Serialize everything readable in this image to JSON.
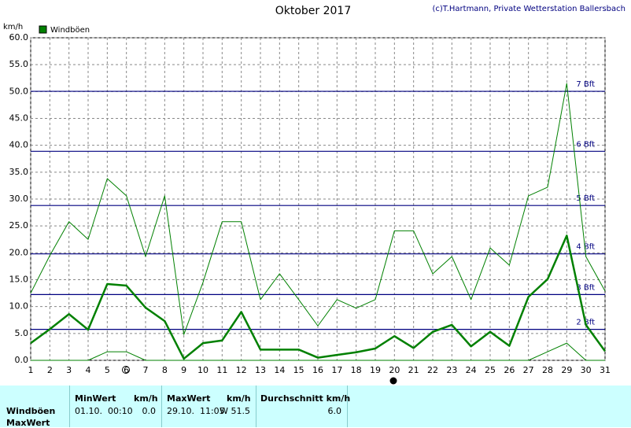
{
  "chart_data": {
    "type": "line",
    "title": "Oktober 2017",
    "credit": "(c)T.Hartmann, Private Wetterstation Ballersbach",
    "ylabel": "km/h",
    "x": [
      1,
      2,
      3,
      4,
      5,
      6,
      7,
      8,
      9,
      10,
      11,
      12,
      13,
      14,
      15,
      16,
      17,
      18,
      19,
      20,
      21,
      22,
      23,
      24,
      25,
      26,
      27,
      28,
      29,
      30,
      31
    ],
    "xlim": [
      1,
      31
    ],
    "xticks": [
      1,
      2,
      3,
      4,
      5,
      6,
      7,
      8,
      9,
      10,
      11,
      12,
      13,
      14,
      15,
      16,
      17,
      18,
      19,
      20,
      21,
      22,
      23,
      24,
      25,
      26,
      27,
      28,
      29,
      30,
      31
    ],
    "ylim": [
      0,
      60
    ],
    "yticks": [
      {
        "value": 0,
        "label": "0.0"
      },
      {
        "value": 5,
        "label": "5.0"
      },
      {
        "value": 10,
        "label": "10.0"
      },
      {
        "value": 15,
        "label": "15.0"
      },
      {
        "value": 20,
        "label": "20.0"
      },
      {
        "value": 25,
        "label": "25.0"
      },
      {
        "value": 30,
        "label": "30.0"
      },
      {
        "value": 35,
        "label": "35.0"
      },
      {
        "value": 40,
        "label": "40.0"
      },
      {
        "value": 45,
        "label": "45.0"
      },
      {
        "value": 50,
        "label": "50.0"
      },
      {
        "value": 55,
        "label": "55.0"
      },
      {
        "value": 60,
        "label": "60.0"
      }
    ],
    "grid": true,
    "reference_lines": [
      {
        "value": 5.76,
        "label": "2 Bft"
      },
      {
        "value": 12.24,
        "label": "3 Bft"
      },
      {
        "value": 19.8,
        "label": "4 Bft"
      },
      {
        "value": 28.8,
        "label": "5 Bft"
      },
      {
        "value": 38.88,
        "label": "6 Bft"
      },
      {
        "value": 50.04,
        "label": "7 Bft"
      }
    ],
    "reference_color": "#000080",
    "series": [
      {
        "name": "Windböen",
        "color": "#008000",
        "width": 1,
        "values": [
          12.5,
          19.5,
          25.8,
          22.5,
          33.8,
          30.6,
          19.3,
          30.6,
          4.8,
          14.5,
          25.8,
          25.8,
          11.3,
          16.1,
          11.3,
          6.4,
          11.3,
          9.7,
          11.3,
          24.1,
          24.1,
          16.1,
          19.3,
          11.3,
          20.9,
          17.7,
          30.6,
          32.2,
          51.5,
          19.3,
          12.9
        ]
      },
      {
        "color": "#008000",
        "width": 2.5,
        "values": [
          3.2,
          5.8,
          8.6,
          5.7,
          14.2,
          13.9,
          9.8,
          7.3,
          0.3,
          3.2,
          3.7,
          9.0,
          2.0,
          2.0,
          2.0,
          0.5,
          1.0,
          1.5,
          2.2,
          4.5,
          2.3,
          5.3,
          6.6,
          2.6,
          5.3,
          2.7,
          11.8,
          15.1,
          23.2,
          6.6,
          1.7
        ]
      },
      {
        "color": "#008000",
        "width": 1,
        "values": [
          0,
          0,
          0,
          0,
          1.6,
          1.6,
          0,
          0,
          0,
          0,
          0,
          0,
          0,
          0,
          0,
          0,
          0,
          0,
          0,
          0,
          0,
          0,
          0,
          0,
          0,
          0,
          0,
          1.6,
          3.2,
          0,
          0
        ]
      }
    ]
  },
  "table": {
    "headers": [
      "MinWert",
      "km/h",
      "MaxWert",
      "km/h",
      "Durchschnitt km/h"
    ],
    "rows": [
      [
        "Windböen",
        "01.10.  00:10",
        "0.0",
        "29.10.  11:05",
        "W 51.5",
        "6.0"
      ],
      [
        "MaxWert"
      ]
    ]
  }
}
